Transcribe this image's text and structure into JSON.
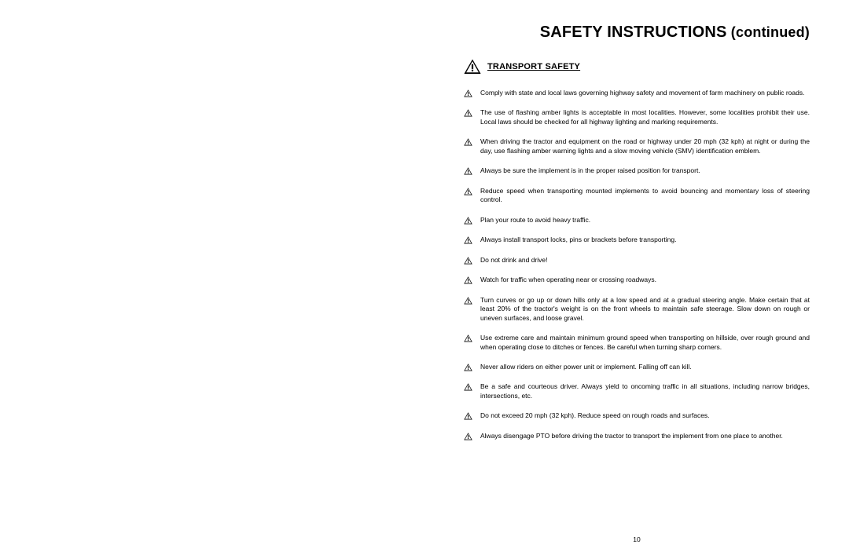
{
  "title_main": "SAFETY INSTRUCTIONS",
  "title_suffix": " (continued)",
  "section_title": "TRANSPORT SAFETY",
  "page_number": "10",
  "items": [
    "Comply with state and local laws governing highway safety and movement of farm machinery on public roads.",
    "The use of flashing amber lights is acceptable in most localities. However, some localities prohibit their use. Local laws should be checked for all highway lighting and marking requirements.",
    "When driving the tractor and equipment on the road or highway under 20 mph (32 kph) at night or during the day, use flashing amber warning lights and a slow moving vehicle (SMV) identification emblem.",
    "Always be sure the implement is in the proper raised position for transport.",
    "Reduce speed when transporting mounted implements to avoid bouncing and momentary loss of steering control.",
    "Plan your route to avoid heavy traffic.",
    "Always install transport locks, pins or brackets before transporting.",
    "Do not drink and drive!",
    "Watch for traffic when operating near or crossing roadways.",
    "Turn curves or go up or down hills only at a low speed and at a gradual steering angle. Make certain that at least 20% of the tractor's weight is on the front wheels to maintain safe steerage. Slow down on rough or uneven surfaces, and loose gravel.",
    "Use extreme care and maintain minimum ground speed when transporting on hillside, over rough ground and when operating close to ditches or fences. Be careful when turning sharp corners.",
    "Never allow riders on either power unit or implement. Falling off can kill.",
    "Be a safe and courteous driver. Always yield to oncoming traffic in all situations, including narrow bridges, intersections, etc.",
    "Do not exceed 20 mph (32 kph). Reduce speed on rough roads and surfaces.",
    "Always disengage PTO before driving the tractor to transport the implement from one place to another."
  ]
}
